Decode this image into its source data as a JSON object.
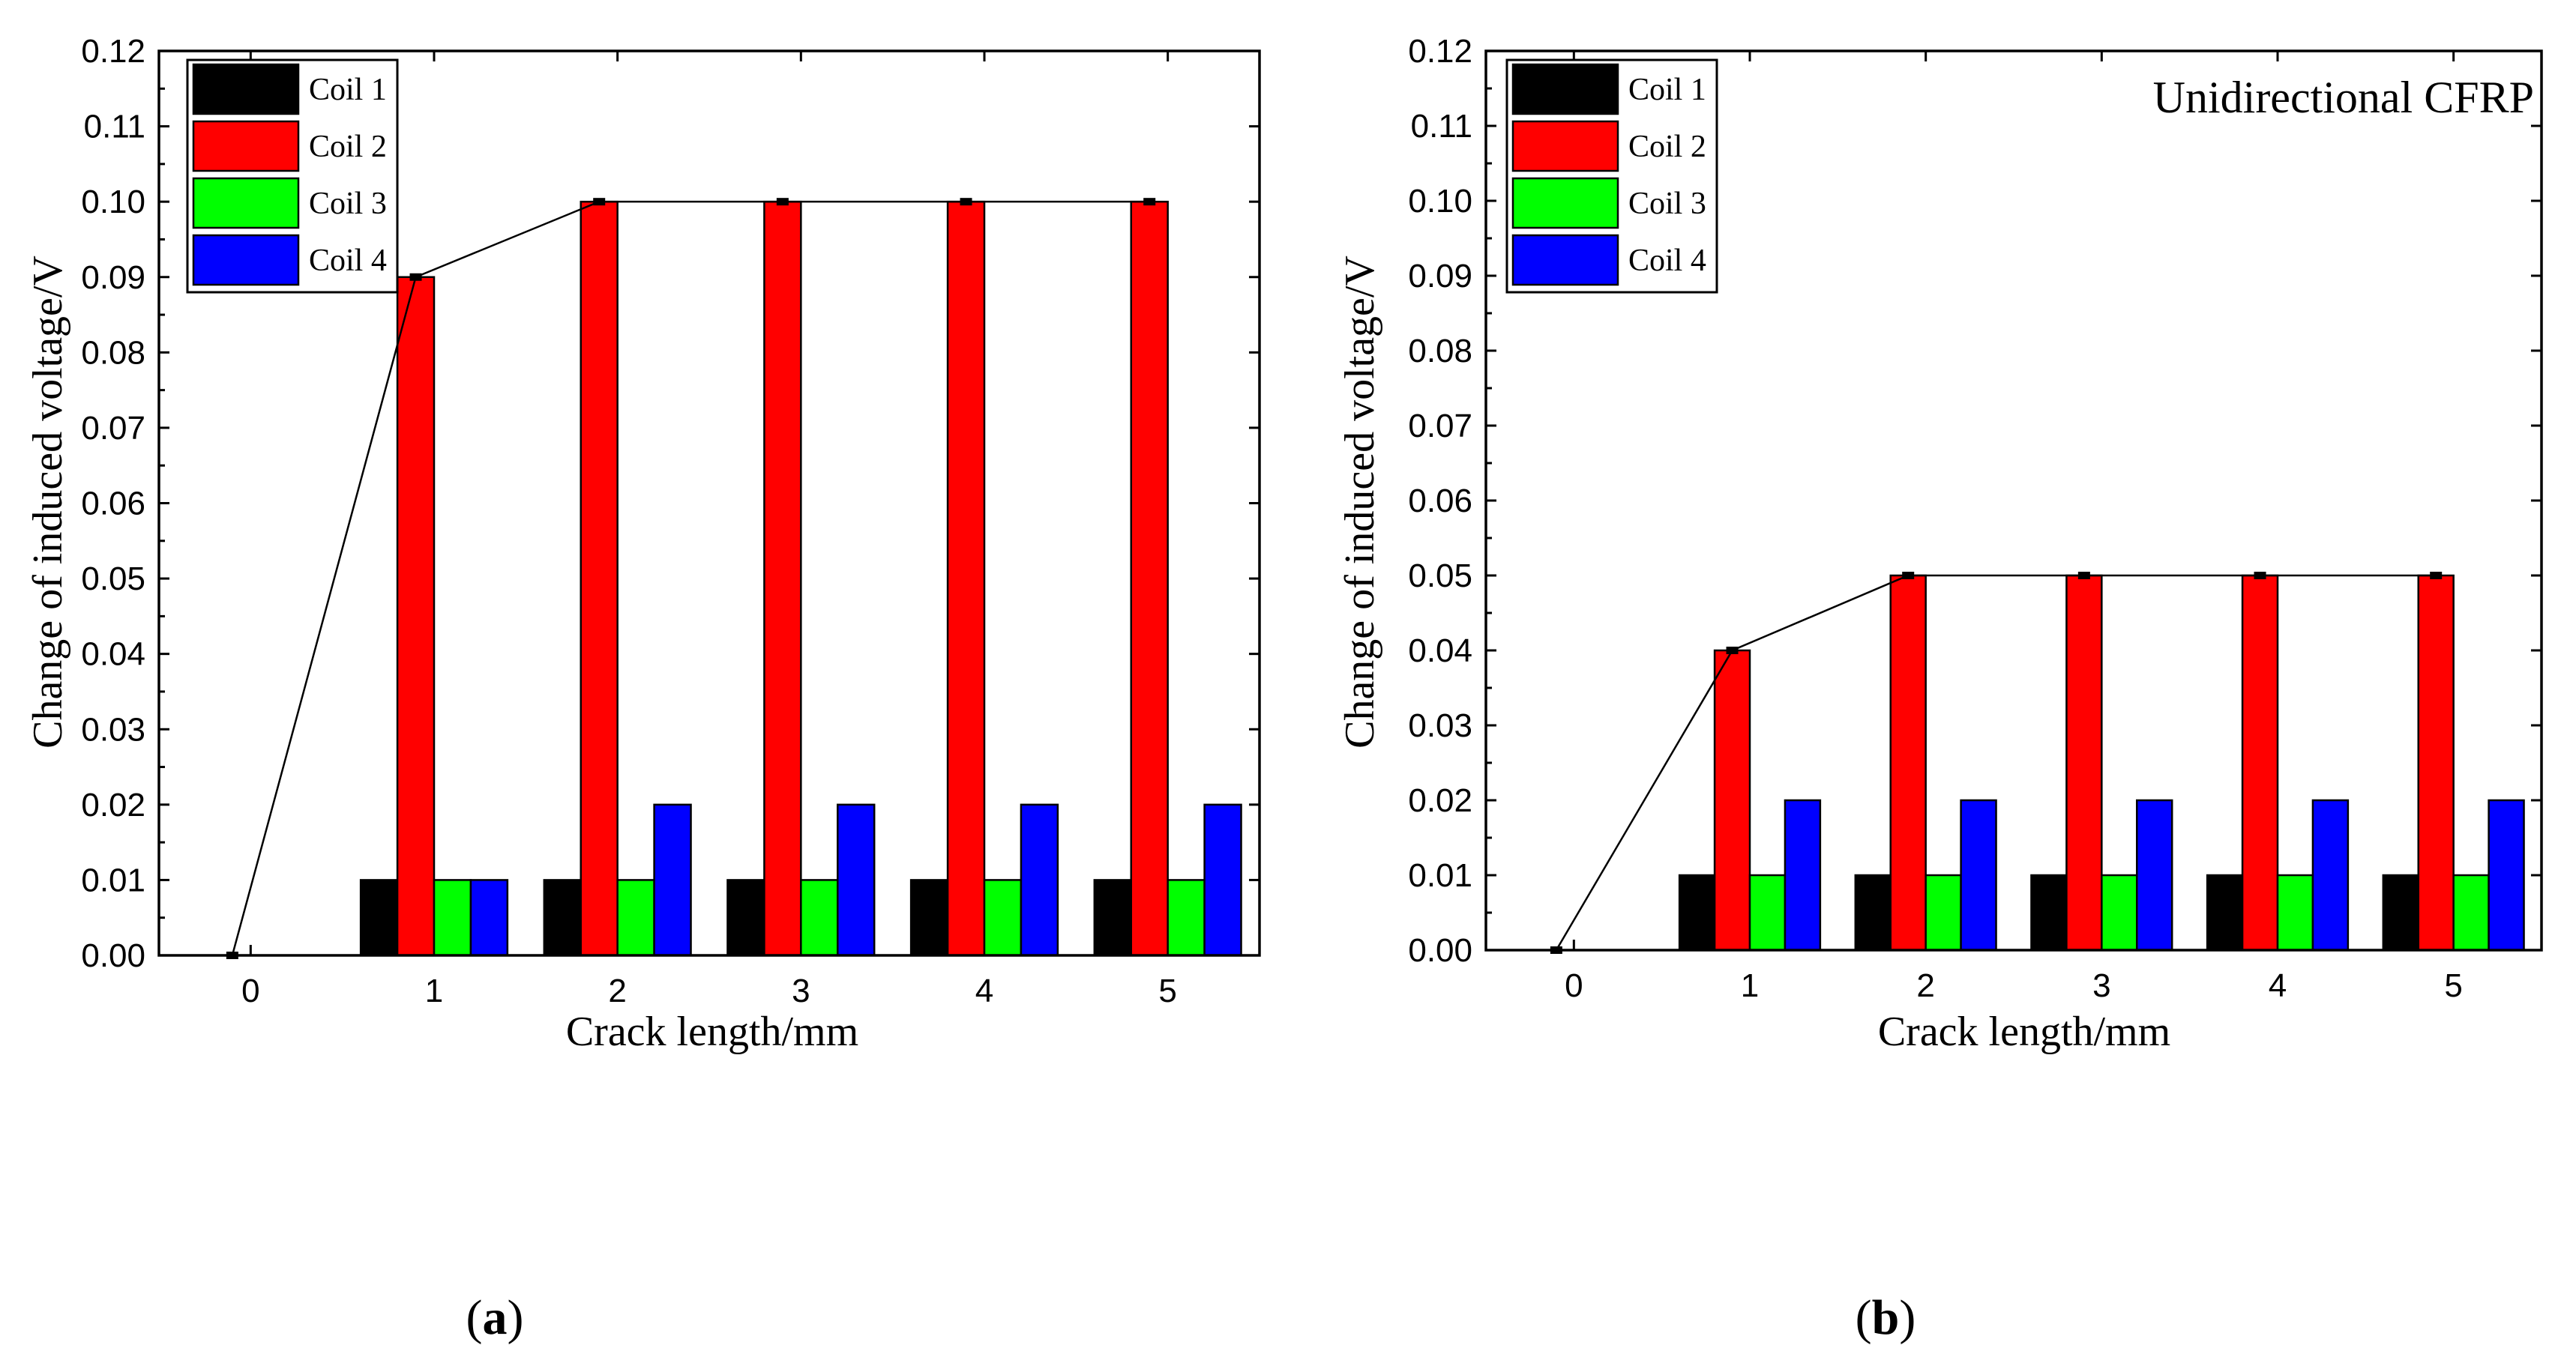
{
  "colors": {
    "Coil 1": "#000000",
    "Coil 2": "#ff0000",
    "Coil 3": "#00ff00",
    "Coil 4": "#0000ff"
  },
  "chart_data": [
    {
      "type": "bar",
      "panel": "a",
      "caption": "(a)",
      "caption_letter": "a",
      "annotation": "",
      "xlabel": "Crack length/mm",
      "ylabel": "Change of induced voltage/V",
      "ylim": [
        0,
        0.12
      ],
      "yticks": [
        "0.00",
        "0.01",
        "0.02",
        "0.03",
        "0.04",
        "0.05",
        "0.06",
        "0.07",
        "0.08",
        "0.09",
        "0.10",
        "0.11",
        "0.12"
      ],
      "categories": [
        "0",
        "1",
        "2",
        "3",
        "4",
        "5"
      ],
      "legend": [
        "Coil 1",
        "Coil 2",
        "Coil 3",
        "Coil 4"
      ],
      "legend_position": "top-left",
      "series": [
        {
          "name": "Coil 1",
          "values": [
            0,
            0.01,
            0.01,
            0.01,
            0.01,
            0.01
          ]
        },
        {
          "name": "Coil 2",
          "values": [
            0,
            0.09,
            0.1,
            0.1,
            0.1,
            0.1
          ]
        },
        {
          "name": "Coil 3",
          "values": [
            0,
            0.01,
            0.01,
            0.01,
            0.01,
            0.01
          ]
        },
        {
          "name": "Coil 4",
          "values": [
            0,
            0.01,
            0.02,
            0.02,
            0.02,
            0.02
          ]
        }
      ],
      "trend_line": {
        "series": "Coil 2",
        "values": [
          0,
          0.09,
          0.1,
          0.1,
          0.1,
          0.1
        ]
      }
    },
    {
      "type": "bar",
      "panel": "b",
      "caption": "(b)",
      "caption_letter": "b",
      "annotation": "Unidirectional CFRP",
      "xlabel": "Crack length/mm",
      "ylabel": "Change of induced voltage/V",
      "ylim": [
        0,
        0.12
      ],
      "yticks": [
        "0.00",
        "0.01",
        "0.02",
        "0.03",
        "0.04",
        "0.05",
        "0.06",
        "0.07",
        "0.08",
        "0.09",
        "0.10",
        "0.11",
        "0.12"
      ],
      "categories": [
        "0",
        "1",
        "2",
        "3",
        "4",
        "5"
      ],
      "legend": [
        "Coil 1",
        "Coil 2",
        "Coil 3",
        "Coil 4"
      ],
      "legend_position": "top-left",
      "series": [
        {
          "name": "Coil 1",
          "values": [
            0,
            0.01,
            0.01,
            0.01,
            0.01,
            0.01
          ]
        },
        {
          "name": "Coil 2",
          "values": [
            0,
            0.04,
            0.05,
            0.05,
            0.05,
            0.05
          ]
        },
        {
          "name": "Coil 3",
          "values": [
            0,
            0.01,
            0.01,
            0.01,
            0.01,
            0.01
          ]
        },
        {
          "name": "Coil 4",
          "values": [
            0,
            0.02,
            0.02,
            0.02,
            0.02,
            0.02
          ]
        }
      ],
      "trend_line": {
        "series": "Coil 2",
        "values": [
          0,
          0.04,
          0.05,
          0.05,
          0.05,
          0.05
        ]
      }
    }
  ]
}
